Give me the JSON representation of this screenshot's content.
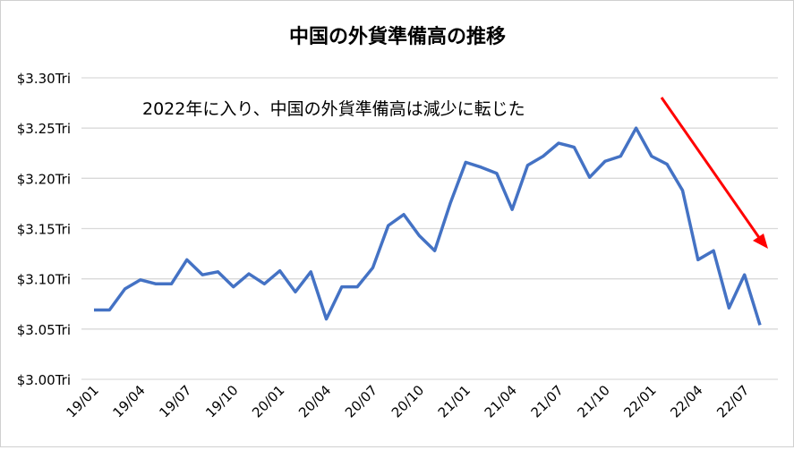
{
  "chart_data": {
    "type": "line",
    "title": "中国の外貨準備高の推移",
    "annotation": "2022年に入り、中国の外貨準備高は減少に転じた",
    "ylim": [
      3.0,
      3.3
    ],
    "yticks": [
      3.0,
      3.05,
      3.1,
      3.15,
      3.2,
      3.25,
      3.3
    ],
    "ytick_labels": [
      "$3.00Tri",
      "$3.05Tri",
      "$3.10Tri",
      "$3.15Tri",
      "$3.20Tri",
      "$3.25Tri",
      "$3.30Tri"
    ],
    "xtick_labels": [
      "19/01",
      "19/04",
      "19/07",
      "19/10",
      "20/01",
      "20/04",
      "20/07",
      "20/10",
      "21/01",
      "21/04",
      "21/07",
      "21/10",
      "22/01",
      "22/04",
      "22/07"
    ],
    "grid": true,
    "line_color": "#4472C4",
    "arrow_color": "#FF0000",
    "x": [
      "19/01",
      "19/02",
      "19/03",
      "19/04",
      "19/05",
      "19/06",
      "19/07",
      "19/08",
      "19/09",
      "19/10",
      "19/11",
      "19/12",
      "20/01",
      "20/02",
      "20/03",
      "20/04",
      "20/05",
      "20/06",
      "20/07",
      "20/08",
      "20/09",
      "20/10",
      "20/11",
      "20/12",
      "21/01",
      "21/02",
      "21/03",
      "21/04",
      "21/05",
      "21/06",
      "21/07",
      "21/08",
      "21/09",
      "21/10",
      "21/11",
      "21/12",
      "22/01",
      "22/02",
      "22/03",
      "22/04",
      "22/05",
      "22/06",
      "22/07",
      "22/08"
    ],
    "values": [
      3.069,
      3.069,
      3.09,
      3.099,
      3.095,
      3.095,
      3.119,
      3.104,
      3.107,
      3.092,
      3.105,
      3.095,
      3.108,
      3.087,
      3.107,
      3.06,
      3.092,
      3.092,
      3.111,
      3.153,
      3.164,
      3.143,
      3.128,
      3.175,
      3.216,
      3.211,
      3.205,
      3.169,
      3.213,
      3.222,
      3.235,
      3.231,
      3.201,
      3.217,
      3.222,
      3.25,
      3.222,
      3.214,
      3.188,
      3.119,
      3.128,
      3.071,
      3.104,
      3.054
    ]
  }
}
